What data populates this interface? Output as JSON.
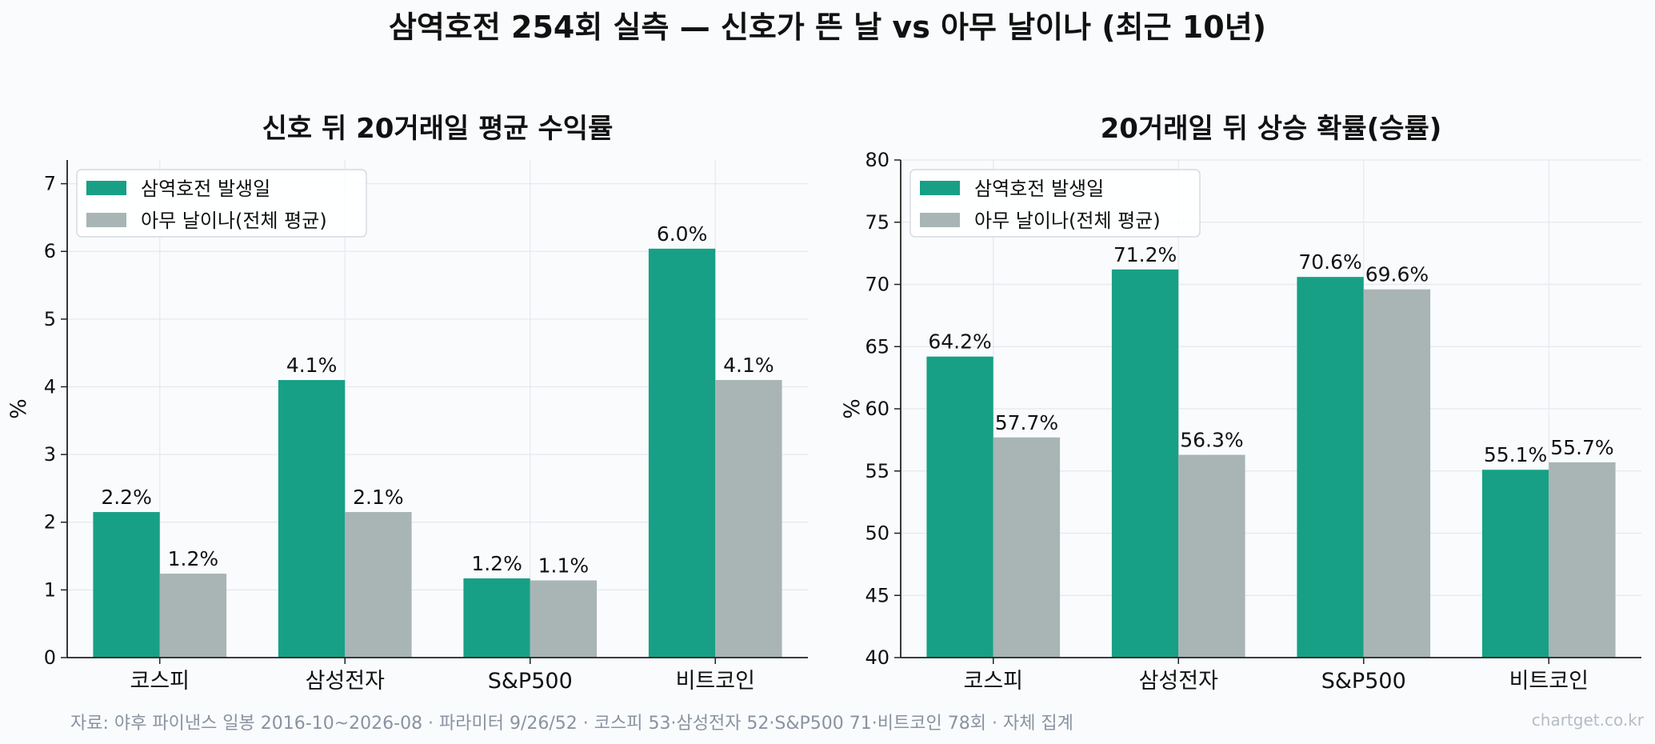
{
  "suptitle": "삼역호전 254회 실측 — 신호가 뜬 날 vs 아무 날이나 (최근 10년)",
  "colors": {
    "signal": "#17a085",
    "baseline": "#a8b5b4"
  },
  "chart_data": [
    {
      "type": "bar",
      "title": "신호 뒤 20거래일 평균 수익률",
      "ylabel": "%",
      "ylim": [
        0,
        7.35
      ],
      "yticks": [
        0,
        1,
        2,
        3,
        4,
        5,
        6,
        7
      ],
      "grid": true,
      "legend_position": "top-left",
      "categories": [
        "코스피",
        "삼성전자",
        "S&P500",
        "비트코인"
      ],
      "series": [
        {
          "name": "삼역호전 발생일",
          "values": [
            2.15,
            4.1,
            1.17,
            6.04
          ],
          "labels": [
            "2.2%",
            "4.1%",
            "1.2%",
            "6.0%"
          ]
        },
        {
          "name": "아무 날이나(전체 평균)",
          "values": [
            1.24,
            2.15,
            1.14,
            4.1
          ],
          "labels": [
            "1.2%",
            "2.1%",
            "1.1%",
            "4.1%"
          ]
        }
      ]
    },
    {
      "type": "bar",
      "title": "20거래일 뒤 상승 확률(승률)",
      "ylabel": "%",
      "ylim": [
        40,
        80
      ],
      "yticks": [
        40,
        45,
        50,
        55,
        60,
        65,
        70,
        75,
        80
      ],
      "grid": true,
      "legend_position": "top-left",
      "categories": [
        "코스피",
        "삼성전자",
        "S&P500",
        "비트코인"
      ],
      "series": [
        {
          "name": "삼역호전 발생일",
          "values": [
            64.2,
            71.2,
            70.6,
            55.1
          ],
          "labels": [
            "64.2%",
            "71.2%",
            "70.6%",
            "55.1%"
          ]
        },
        {
          "name": "아무 날이나(전체 평균)",
          "values": [
            57.7,
            56.3,
            69.6,
            55.7
          ],
          "labels": [
            "57.7%",
            "56.3%",
            "69.6%",
            "55.7%"
          ]
        }
      ]
    }
  ],
  "footer": {
    "source": "자료: 야후 파이낸스 일봉 2016-10~2026-08 · 파라미터 9/26/52 · 코스피 53·삼성전자 52·S&P500 71·비트코인 78회 · 자체 집계",
    "brand": "chartget.co.kr"
  }
}
